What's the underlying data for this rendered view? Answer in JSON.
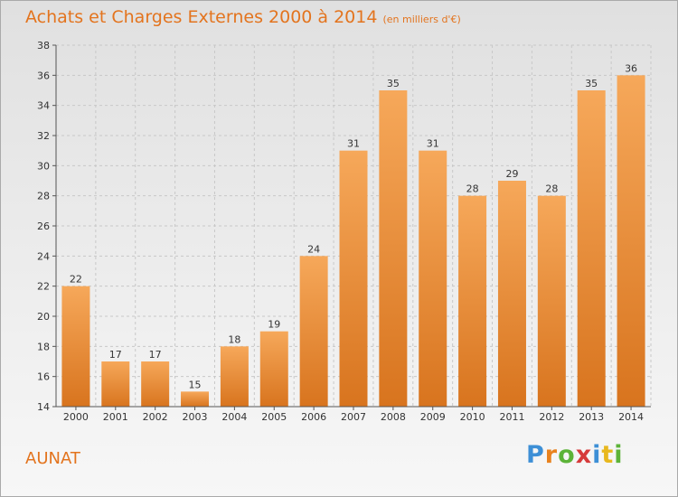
{
  "header": {
    "title": "Achats et Charges Externes 2000 à 2014",
    "subtitle": "(en milliers d'€)"
  },
  "footer": {
    "commune": "AUNAT",
    "brand_letters": [
      "P",
      "r",
      "o",
      "x",
      "i",
      "t",
      "i"
    ],
    "brand_colors": [
      "#3d8fd6",
      "#e8821e",
      "#5cb338",
      "#d63a3a",
      "#3d8fd6",
      "#e8b81e",
      "#5cb338"
    ]
  },
  "colors": {
    "accent": "#e3741e",
    "bar_top": "#f6a85a",
    "bar_bottom": "#d8741e"
  },
  "chart_data": {
    "type": "bar",
    "title": "Achats et Charges Externes 2000 à 2014",
    "categories": [
      "2000",
      "2001",
      "2002",
      "2003",
      "2004",
      "2005",
      "2006",
      "2007",
      "2008",
      "2009",
      "2010",
      "2011",
      "2012",
      "2013",
      "2014"
    ],
    "values": [
      22,
      17,
      17,
      15,
      18,
      19,
      24,
      31,
      35,
      31,
      28,
      29,
      28,
      35,
      36
    ],
    "ylim": [
      14,
      38
    ],
    "yticks": [
      14,
      16,
      18,
      20,
      22,
      24,
      26,
      28,
      30,
      32,
      34,
      36,
      38
    ],
    "grid": true
  }
}
